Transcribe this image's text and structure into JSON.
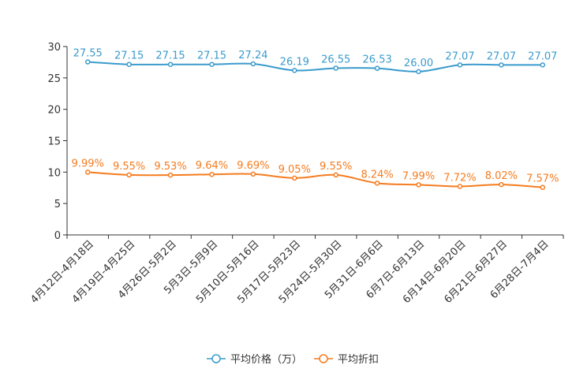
{
  "chart_data": {
    "type": "line",
    "title": "",
    "xlabel": "",
    "ylabel": "",
    "ylim": [
      0,
      30
    ],
    "yticks": [
      0,
      5,
      10,
      15,
      20,
      25,
      30
    ],
    "grid": false,
    "legend_position": "bottom-center",
    "categories": [
      "4月12日-4月18日",
      "4月19日-4月25日",
      "4月26日-5月2日",
      "5月3日-5月9日",
      "5月10日-5月16日",
      "5月17日-5月23日",
      "5月24日-5月30日",
      "5月31日-6月6日",
      "6月7日-6月13日",
      "6月14日-6月20日",
      "6月21日-6月27日",
      "6月28日-7月4日"
    ],
    "series": [
      {
        "name": "平均价格（万）",
        "color": "#3a9bcc",
        "values": [
          27.55,
          27.15,
          27.15,
          27.15,
          27.24,
          26.19,
          26.55,
          26.53,
          26.0,
          27.07,
          27.07,
          27.07
        ],
        "labels": [
          "27.55",
          "27.15",
          "27.15",
          "27.15",
          "27.24",
          "26.19",
          "26.55",
          "26.53",
          "26.00",
          "27.07",
          "27.07",
          "27.07"
        ]
      },
      {
        "name": "平均折扣",
        "color": "#f57c1f",
        "values": [
          9.99,
          9.55,
          9.53,
          9.64,
          9.69,
          9.05,
          9.55,
          8.24,
          7.99,
          7.72,
          8.02,
          7.57
        ],
        "labels": [
          "9.99%",
          "9.55%",
          "9.53%",
          "9.64%",
          "9.69%",
          "9.05%",
          "9.55%",
          "8.24%",
          "7.99%",
          "7.72%",
          "8.02%",
          "7.57%"
        ]
      }
    ]
  }
}
